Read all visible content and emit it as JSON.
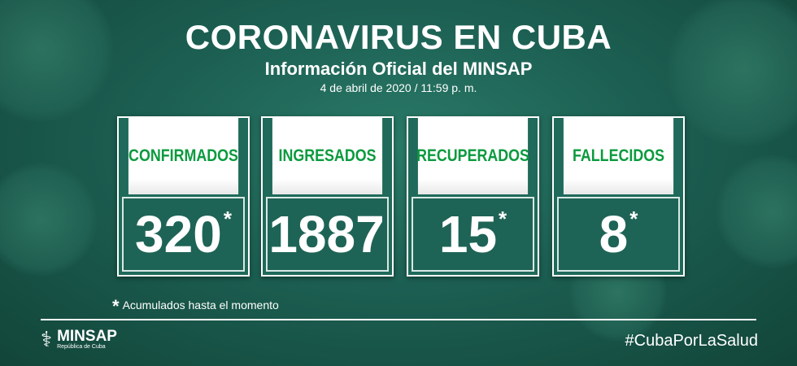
{
  "header": {
    "title": "CORONAVIRUS EN CUBA",
    "subtitle": "Información Oficial del MINSAP",
    "date": "4 de abril de 2020 / 11:59 p. m."
  },
  "stats": [
    {
      "label": "CONFIRMADOS",
      "value": "320",
      "asterisk": "*"
    },
    {
      "label": "INGRESADOS",
      "value": "1887",
      "asterisk": ""
    },
    {
      "label": "RECUPERADOS",
      "value": "15",
      "asterisk": "*"
    },
    {
      "label": "FALLECIDOS",
      "value": "8",
      "asterisk": "*"
    }
  ],
  "footnote": {
    "marker": "*",
    "text": "Acumulados hasta el momento"
  },
  "footer": {
    "logo_name": "MINSAP",
    "logo_sub": "República de Cuba",
    "hashtag": "#CubaPorLaSalud"
  },
  "colors": {
    "label_green": "#0b9a3e",
    "background": "#1c5f52"
  }
}
